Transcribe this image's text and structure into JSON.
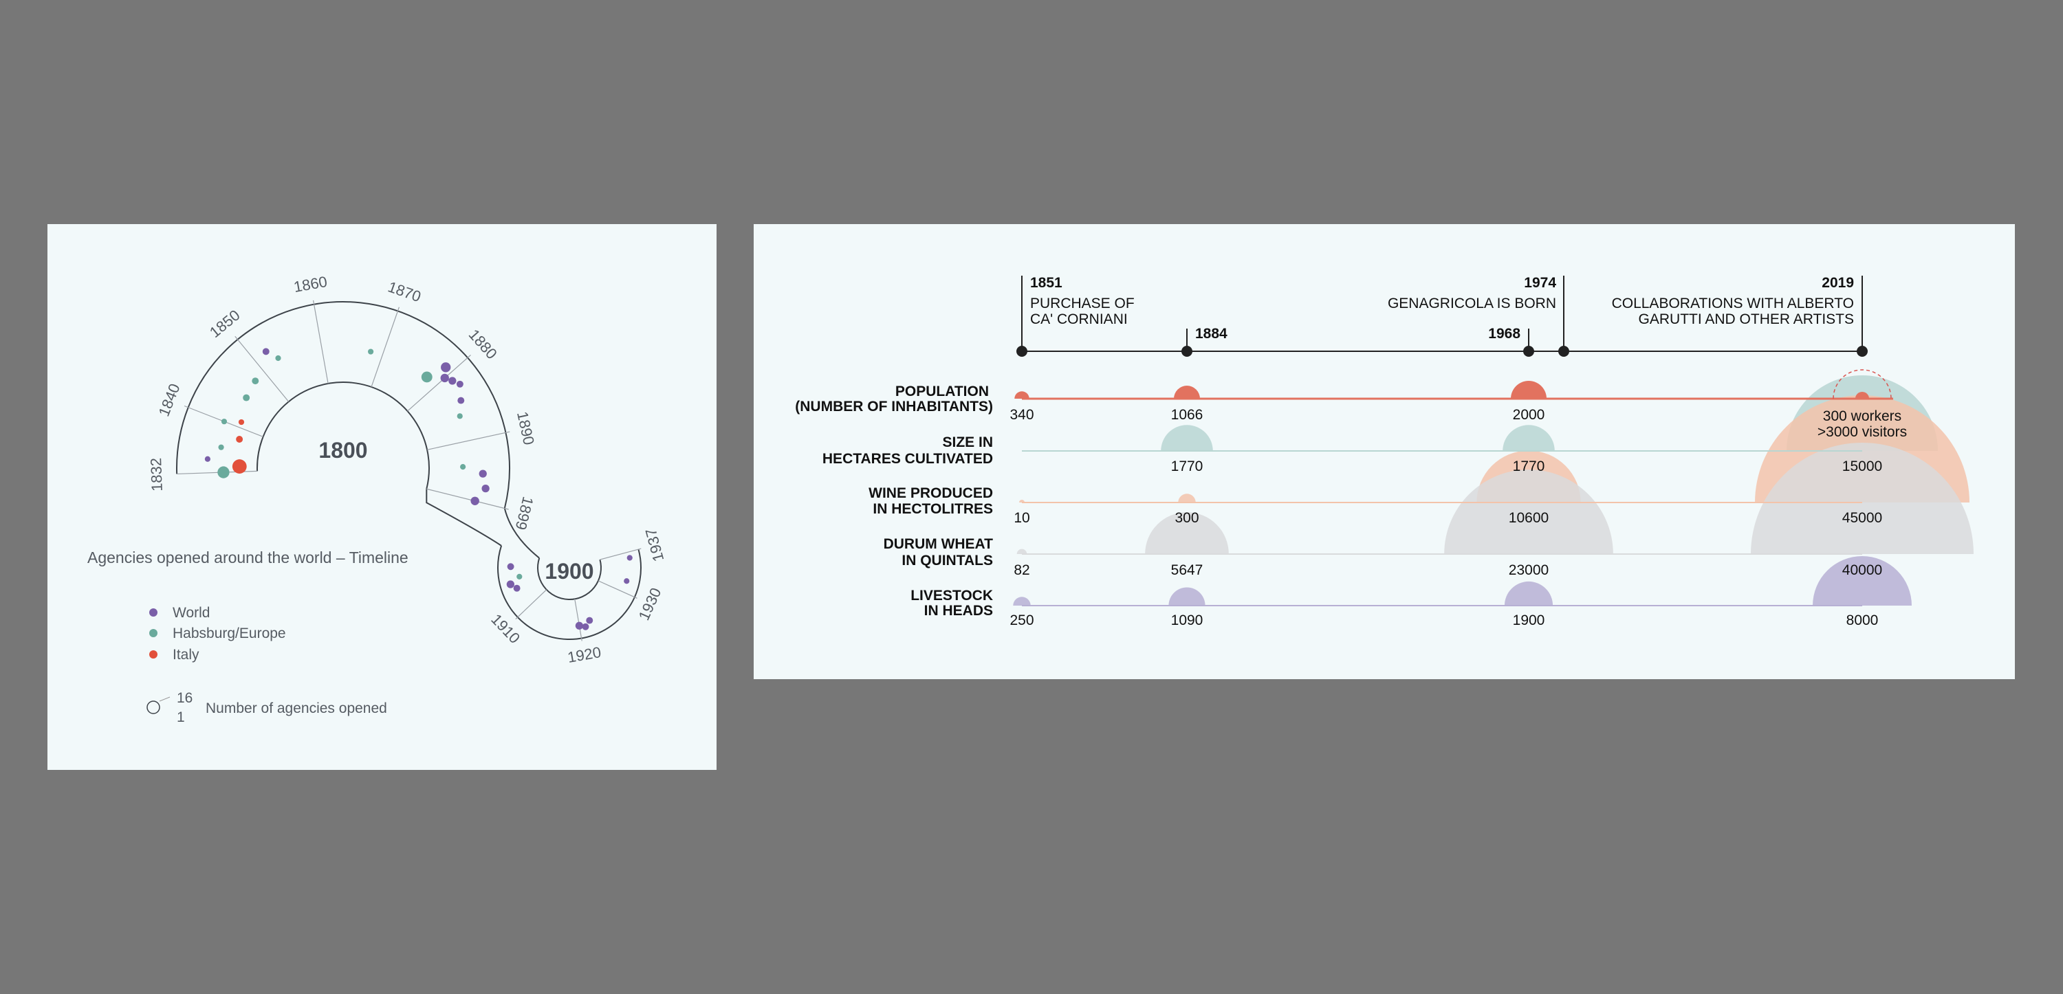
{
  "colors": {
    "world": "#7a5fa8",
    "habsburg": "#6aaa9c",
    "italy": "#e2503b",
    "line": "#3d4349",
    "population": "#e2725f",
    "size": "#b8d6d2",
    "wine": "#f3c3aa",
    "wheat": "#d9dbdc",
    "livestock": "#b7b0d4"
  },
  "timeline": {
    "title": "Agencies opened around the world – Timeline",
    "centers": [
      "1800",
      "1900"
    ],
    "years_outer": [
      "1832",
      "1840",
      "1850",
      "1860",
      "1870",
      "1880",
      "1890",
      "1899"
    ],
    "years_inner": [
      "1910",
      "1920",
      "1930",
      "1937"
    ],
    "legend": [
      {
        "label": "World",
        "color": "#7a5fa8"
      },
      {
        "label": "Habsburg/Europe",
        "color": "#6aaa9c"
      },
      {
        "label": "Italy",
        "color": "#e2503b"
      }
    ],
    "size_legend": {
      "max": "16",
      "min": "1",
      "label": "Number of agencies opened"
    }
  },
  "chart_data": [
    {
      "type": "scatter",
      "title": "Agencies opened around the world – Timeline",
      "series": [
        {
          "name": "World",
          "points": [
            {
              "year": 1834,
              "agencies": 1
            },
            {
              "year": 1852,
              "agencies": 2
            },
            {
              "year": 1879,
              "agencies": 6
            },
            {
              "year": 1880,
              "agencies": 4
            },
            {
              "year": 1881,
              "agencies": 3
            },
            {
              "year": 1882,
              "agencies": 2
            },
            {
              "year": 1884,
              "agencies": 2
            },
            {
              "year": 1895,
              "agencies": 3
            },
            {
              "year": 1897,
              "agencies": 3
            },
            {
              "year": 1899,
              "agencies": 4
            },
            {
              "year": 1902,
              "agencies": 2
            },
            {
              "year": 1905,
              "agencies": 3
            },
            {
              "year": 1906,
              "agencies": 2
            },
            {
              "year": 1920,
              "agencies": 3
            },
            {
              "year": 1921,
              "agencies": 2
            },
            {
              "year": 1922,
              "agencies": 2
            },
            {
              "year": 1932,
              "agencies": 1
            },
            {
              "year": 1936,
              "agencies": 1
            }
          ]
        },
        {
          "name": "Habsburg/Europe",
          "points": [
            {
              "year": 1832,
              "agencies": 10
            },
            {
              "year": 1836,
              "agencies": 1
            },
            {
              "year": 1840,
              "agencies": 1
            },
            {
              "year": 1845,
              "agencies": 2
            },
            {
              "year": 1848,
              "agencies": 2
            },
            {
              "year": 1853,
              "agencies": 1
            },
            {
              "year": 1868,
              "agencies": 1
            },
            {
              "year": 1878,
              "agencies": 8
            },
            {
              "year": 1886,
              "agencies": 1
            },
            {
              "year": 1894,
              "agencies": 1
            },
            {
              "year": 1904,
              "agencies": 1
            }
          ]
        },
        {
          "name": "Italy",
          "points": [
            {
              "year": 1833,
              "agencies": 16
            },
            {
              "year": 1838,
              "agencies": 2
            },
            {
              "year": 1841,
              "agencies": 1
            }
          ]
        }
      ]
    },
    {
      "type": "table",
      "columns": [
        "1851",
        "1884",
        "1968",
        "2019"
      ],
      "rows": [
        {
          "name": "Population (number of inhabitants)",
          "values": [
            340,
            1066,
            2000,
            300
          ]
        },
        {
          "name": "Size in hectares cultivated",
          "values": [
            null,
            1770,
            1770,
            15000
          ]
        },
        {
          "name": "Wine produced in hectolitres",
          "values": [
            10,
            300,
            10600,
            45000
          ]
        },
        {
          "name": "Durum wheat in quintals",
          "values": [
            82,
            5647,
            23000,
            40000
          ]
        },
        {
          "name": "Livestock in heads",
          "values": [
            250,
            1090,
            1900,
            8000
          ]
        }
      ]
    }
  ],
  "history": {
    "events": [
      {
        "year": "1851",
        "lines": [
          "PURCHASE OF",
          "CA' CORNIANI"
        ]
      },
      {
        "year": "1884",
        "lines": []
      },
      {
        "year": "1968",
        "lines": []
      },
      {
        "year": "1974",
        "lines": [
          "GENAGRICOLA IS BORN"
        ]
      },
      {
        "year": "2019",
        "lines": [
          "COLLABORATIONS WITH ALBERTO",
          "GARUTTI AND OTHER ARTISTS"
        ]
      }
    ],
    "rows": [
      {
        "label1": "POPULATION",
        "label2": "(NUMBER OF INHABITANTS)",
        "values": [
          "340",
          "1066",
          "2000",
          ""
        ]
      },
      {
        "label1": "SIZE IN",
        "label2": "HECTARES CULTIVATED",
        "values": [
          "",
          "1770",
          "1770",
          "15000"
        ]
      },
      {
        "label1": "WINE PRODUCED",
        "label2": "IN HECTOLITRES",
        "values": [
          "10",
          "300",
          "10600",
          "45000"
        ]
      },
      {
        "label1": "DURUM WHEAT",
        "label2": "IN QUINTALS",
        "values": [
          "82",
          "5647",
          "23000",
          "40000"
        ]
      },
      {
        "label1": "LIVESTOCK",
        "label2": "IN HEADS",
        "values": [
          "250",
          "1090",
          "1900",
          "8000"
        ]
      }
    ],
    "note": [
      "300 workers",
      ">3000 visitors"
    ]
  }
}
